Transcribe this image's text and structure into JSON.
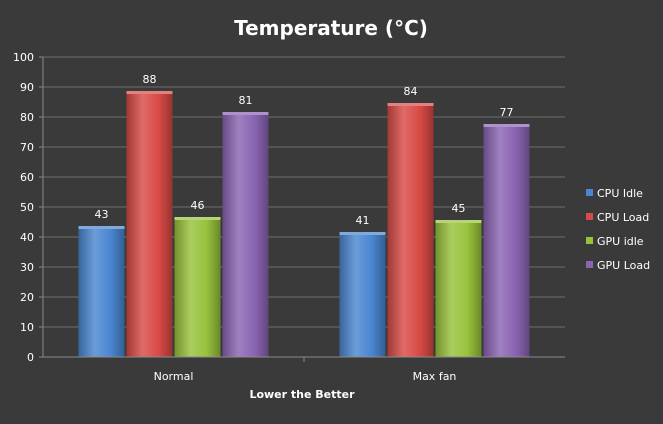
{
  "chart_data": {
    "type": "bar",
    "title": "Temperature (°C)",
    "xlabel": "Lower the Better",
    "ylabel": "",
    "ylim": [
      0,
      100
    ],
    "yticks": [
      0,
      10,
      20,
      30,
      40,
      50,
      60,
      70,
      80,
      90,
      100
    ],
    "grid": true,
    "legend_position": "right",
    "categories": [
      "Normal",
      "Max fan"
    ],
    "series": [
      {
        "name": "CPU Idle",
        "values": [
          43,
          41
        ],
        "color": "#4a86d0"
      },
      {
        "name": "CPU Load",
        "values": [
          88,
          84
        ],
        "color": "#d84a46"
      },
      {
        "name": "GPU idle",
        "values": [
          46,
          45
        ],
        "color": "#98c23c"
      },
      {
        "name": "GPU Load",
        "values": [
          81,
          77
        ],
        "color": "#8a64b2"
      }
    ]
  },
  "style": {
    "background": "#3a3a3a",
    "text_color": "#ffffff",
    "grid_color": "#6e6e6e",
    "axis_color": "#8a8a8a"
  }
}
